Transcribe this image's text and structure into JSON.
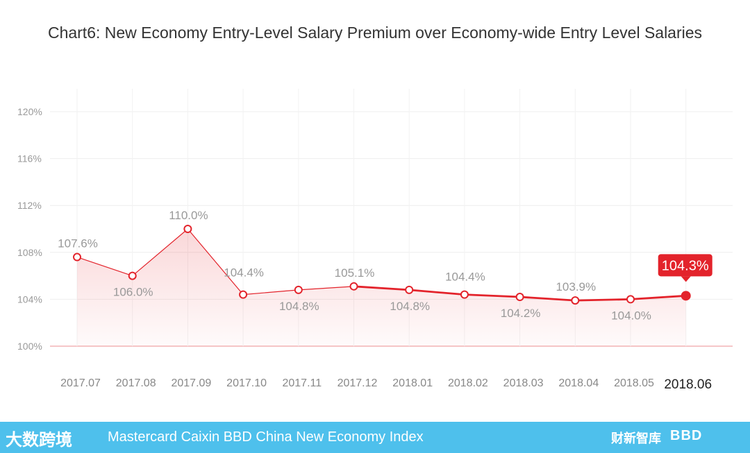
{
  "chart_data": {
    "type": "line",
    "title": "Chart6: New Economy Entry-Level Salary Premium over Economy-wide Entry Level Salaries",
    "xlabel": "",
    "ylabel": "",
    "categories": [
      "2017.07",
      "2017.08",
      "2017.09",
      "2017.10",
      "2017.11",
      "2017.12",
      "2018.01",
      "2018.02",
      "2018.03",
      "2018.04",
      "2018.05",
      "2018.06"
    ],
    "values": [
      107.6,
      106.0,
      110.0,
      104.4,
      104.8,
      105.1,
      104.8,
      104.4,
      104.2,
      103.9,
      104.0,
      104.3
    ],
    "data_labels": [
      "107.6%",
      "106.0%",
      "110.0%",
      "104.4%",
      "104.8%",
      "105.1%",
      "104.8%",
      "104.4%",
      "104.2%",
      "103.9%",
      "104.0%",
      "104.3%"
    ],
    "yticks": [
      100,
      104,
      108,
      112,
      116,
      120
    ],
    "ytick_labels": [
      "100%",
      "104%",
      "108%",
      "112%",
      "116%",
      "120%"
    ],
    "ylim": [
      100,
      120
    ],
    "grid": true,
    "line_color": "#e3232b",
    "highlight_index": 11
  },
  "footer": {
    "logo_text": "大数跨境",
    "text": "Mastercard Caixin BBD China New Economy Index",
    "brand1": "财新智库",
    "brand2": "BBD",
    "bg_color": "#4ec0ec"
  }
}
